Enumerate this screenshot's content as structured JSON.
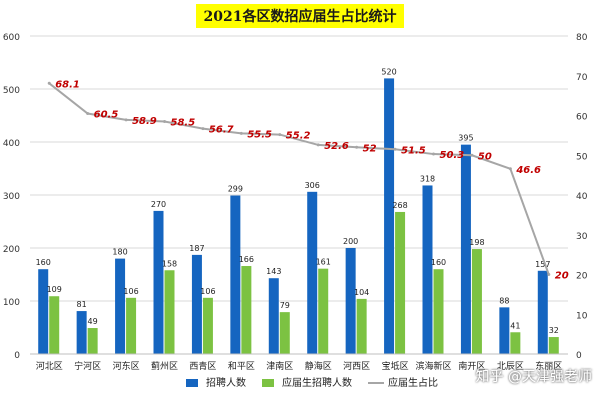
{
  "chart_data": {
    "type": "bar",
    "title": "2021各区数招应届生占比统计",
    "categories": [
      "河北区",
      "宁河区",
      "河东区",
      "蓟州区",
      "西青区",
      "和平区",
      "津南区",
      "静海区",
      "河西区",
      "宝坻区",
      "滨海新区",
      "南开区",
      "北辰区",
      "东丽区"
    ],
    "series": [
      {
        "name": "招聘人数",
        "type": "bar",
        "axis": "left",
        "color": "#1565c0",
        "values": [
          160,
          81,
          180,
          270,
          187,
          299,
          143,
          306,
          200,
          520,
          318,
          395,
          88,
          157
        ]
      },
      {
        "name": "应届生招聘人数",
        "type": "bar",
        "axis": "left",
        "color": "#7cc242",
        "values": [
          109,
          49,
          106,
          158,
          106,
          166,
          79,
          161,
          104,
          268,
          160,
          198,
          41,
          32
        ]
      },
      {
        "name": "应届生占比",
        "type": "line",
        "axis": "right",
        "color": "#a6a6a6",
        "values": [
          68.1,
          60.5,
          58.9,
          58.5,
          56.7,
          55.5,
          55.2,
          52.6,
          52,
          51.5,
          50.3,
          50,
          46.6,
          20
        ],
        "label_color": "#c00000"
      }
    ],
    "ylim_left": [
      0,
      600
    ],
    "yticks_left": [
      0,
      100,
      200,
      300,
      400,
      500,
      600
    ],
    "ylim_right": [
      0,
      80
    ],
    "yticks_right": [
      0,
      10,
      20,
      30,
      40,
      50,
      60,
      70,
      80
    ],
    "grid": true,
    "legend_position": "bottom"
  },
  "watermark": "知乎 @天津强老师"
}
